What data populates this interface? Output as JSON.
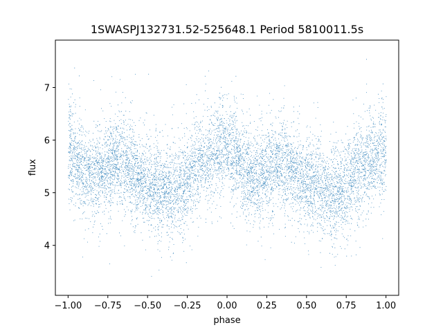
{
  "chart_data": {
    "type": "scatter",
    "title": "1SWASPJ132731.52-525648.1 Period 5810011.5s",
    "xlabel": "phase",
    "ylabel": "flux",
    "xlim": [
      -1.08,
      1.08
    ],
    "ylim": [
      3.05,
      7.9
    ],
    "grid": false,
    "marker_color": "#1f77b4",
    "x_ticks": [
      -1.0,
      -0.75,
      -0.5,
      -0.25,
      0.0,
      0.25,
      0.5,
      0.75,
      1.0
    ],
    "x_tick_labels": [
      "−1.00",
      "−0.75",
      "−0.50",
      "−0.25",
      "0.00",
      "0.25",
      "0.50",
      "0.75",
      "1.00"
    ],
    "y_ticks": [
      4,
      5,
      6,
      7
    ],
    "y_tick_labels": [
      "4",
      "5",
      "6",
      "7"
    ],
    "series": [
      {
        "x": [
          -1.0,
          -0.95,
          -0.9,
          -0.85,
          -0.8,
          -0.75,
          -0.7,
          -0.65,
          -0.6,
          -0.55,
          -0.5,
          -0.45,
          -0.4,
          -0.35,
          -0.3,
          -0.25,
          -0.2,
          -0.15,
          -0.1,
          -0.05,
          0.0,
          0.05,
          0.1,
          0.15,
          0.2,
          0.25,
          0.3,
          0.35,
          0.4,
          0.45,
          0.5,
          0.55,
          0.6,
          0.65,
          0.7,
          0.75,
          0.8,
          0.85,
          0.9,
          0.95,
          1.0
        ],
        "y": [
          5.85,
          5.6,
          5.45,
          5.35,
          5.35,
          5.5,
          5.65,
          5.6,
          5.45,
          5.25,
          5.15,
          5.1,
          5.05,
          5.0,
          5.1,
          5.3,
          5.5,
          5.6,
          5.75,
          5.85,
          5.9,
          5.75,
          5.5,
          5.35,
          5.3,
          5.4,
          5.5,
          5.55,
          5.45,
          5.3,
          5.2,
          5.15,
          5.1,
          5.05,
          5.0,
          5.15,
          5.35,
          5.5,
          5.6,
          5.75,
          5.85
        ]
      }
    ]
  }
}
